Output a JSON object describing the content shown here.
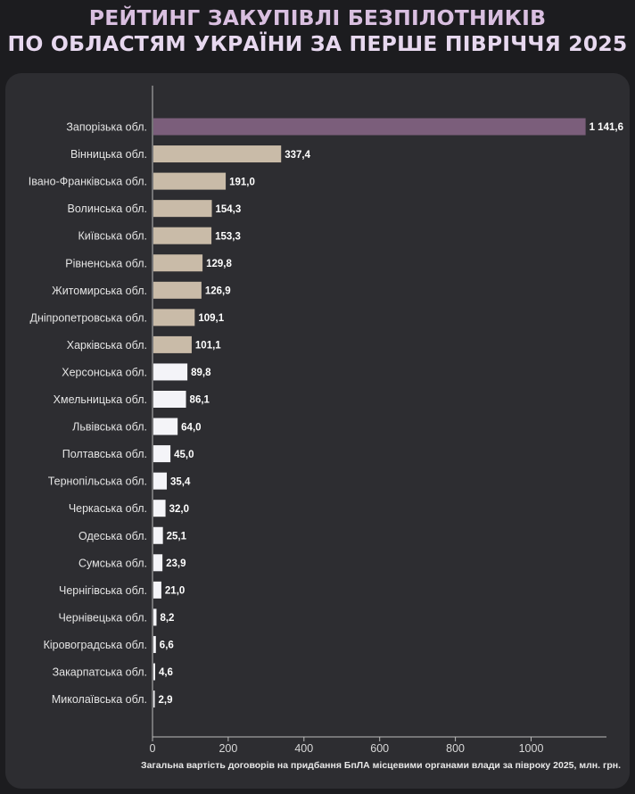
{
  "title": {
    "line1": "РЕЙТИНГ ЗАКУПІВЛІ БЕЗПІЛОТНИКІВ",
    "line2": "ПО ОБЛАСТЯМ УКРАЇНИ ЗА ПЕРШЕ ПІВРІЧЧЯ 2025"
  },
  "colors": {
    "top": "#7b5e7b",
    "high": "#c9bba8",
    "low": "#f4f4f8"
  },
  "chart_data": {
    "type": "bar",
    "orientation": "horizontal",
    "categories": [
      "Запорізька обл.",
      "Вінницька обл.",
      "Івано-Франківська обл.",
      "Волинська обл.",
      "Київська обл.",
      "Рівненська обл.",
      "Житомирська обл.",
      "Дніпропетровська обл.",
      "Харківська обл.",
      "Херсонська обл.",
      "Хмельницька обл.",
      "Львівська обл.",
      "Полтавська обл.",
      "Тернопільська обл.",
      "Черкаська обл.",
      "Одеська обл.",
      "Сумська обл.",
      "Чернігівська обл.",
      "Чернівецька обл.",
      "Кіровоградська обл.",
      "Закарпатська обл.",
      "Миколаївська обл."
    ],
    "values": [
      1141.6,
      337.4,
      191.0,
      154.3,
      153.3,
      129.8,
      126.9,
      109.1,
      101.1,
      89.8,
      86.1,
      64.0,
      45.0,
      35.4,
      32.0,
      25.1,
      23.9,
      21.0,
      8.2,
      6.6,
      4.6,
      2.9
    ],
    "value_labels": [
      "1 141,6",
      "337,4",
      "191,0",
      "154,3",
      "153,3",
      "129,8",
      "126,9",
      "109,1",
      "101,1",
      "89,8",
      "86,1",
      "64,0",
      "45,0",
      "35,4",
      "32,0",
      "25,1",
      "23,9",
      "21,0",
      "8,2",
      "6,6",
      "4,6",
      "2,9"
    ],
    "color_groups": [
      "top",
      "high",
      "high",
      "high",
      "high",
      "high",
      "high",
      "high",
      "high",
      "low",
      "low",
      "low",
      "low",
      "low",
      "low",
      "low",
      "low",
      "low",
      "low",
      "low",
      "low",
      "low"
    ],
    "xticks": [
      0,
      200,
      400,
      600,
      800,
      1000
    ],
    "xlim": [
      0,
      1200
    ],
    "xlabel": "Загальна вартість договорів на придбання БпЛА місцевими органами влади за півроку 2025, млн. грн.",
    "ylabel": "",
    "grid": false
  }
}
